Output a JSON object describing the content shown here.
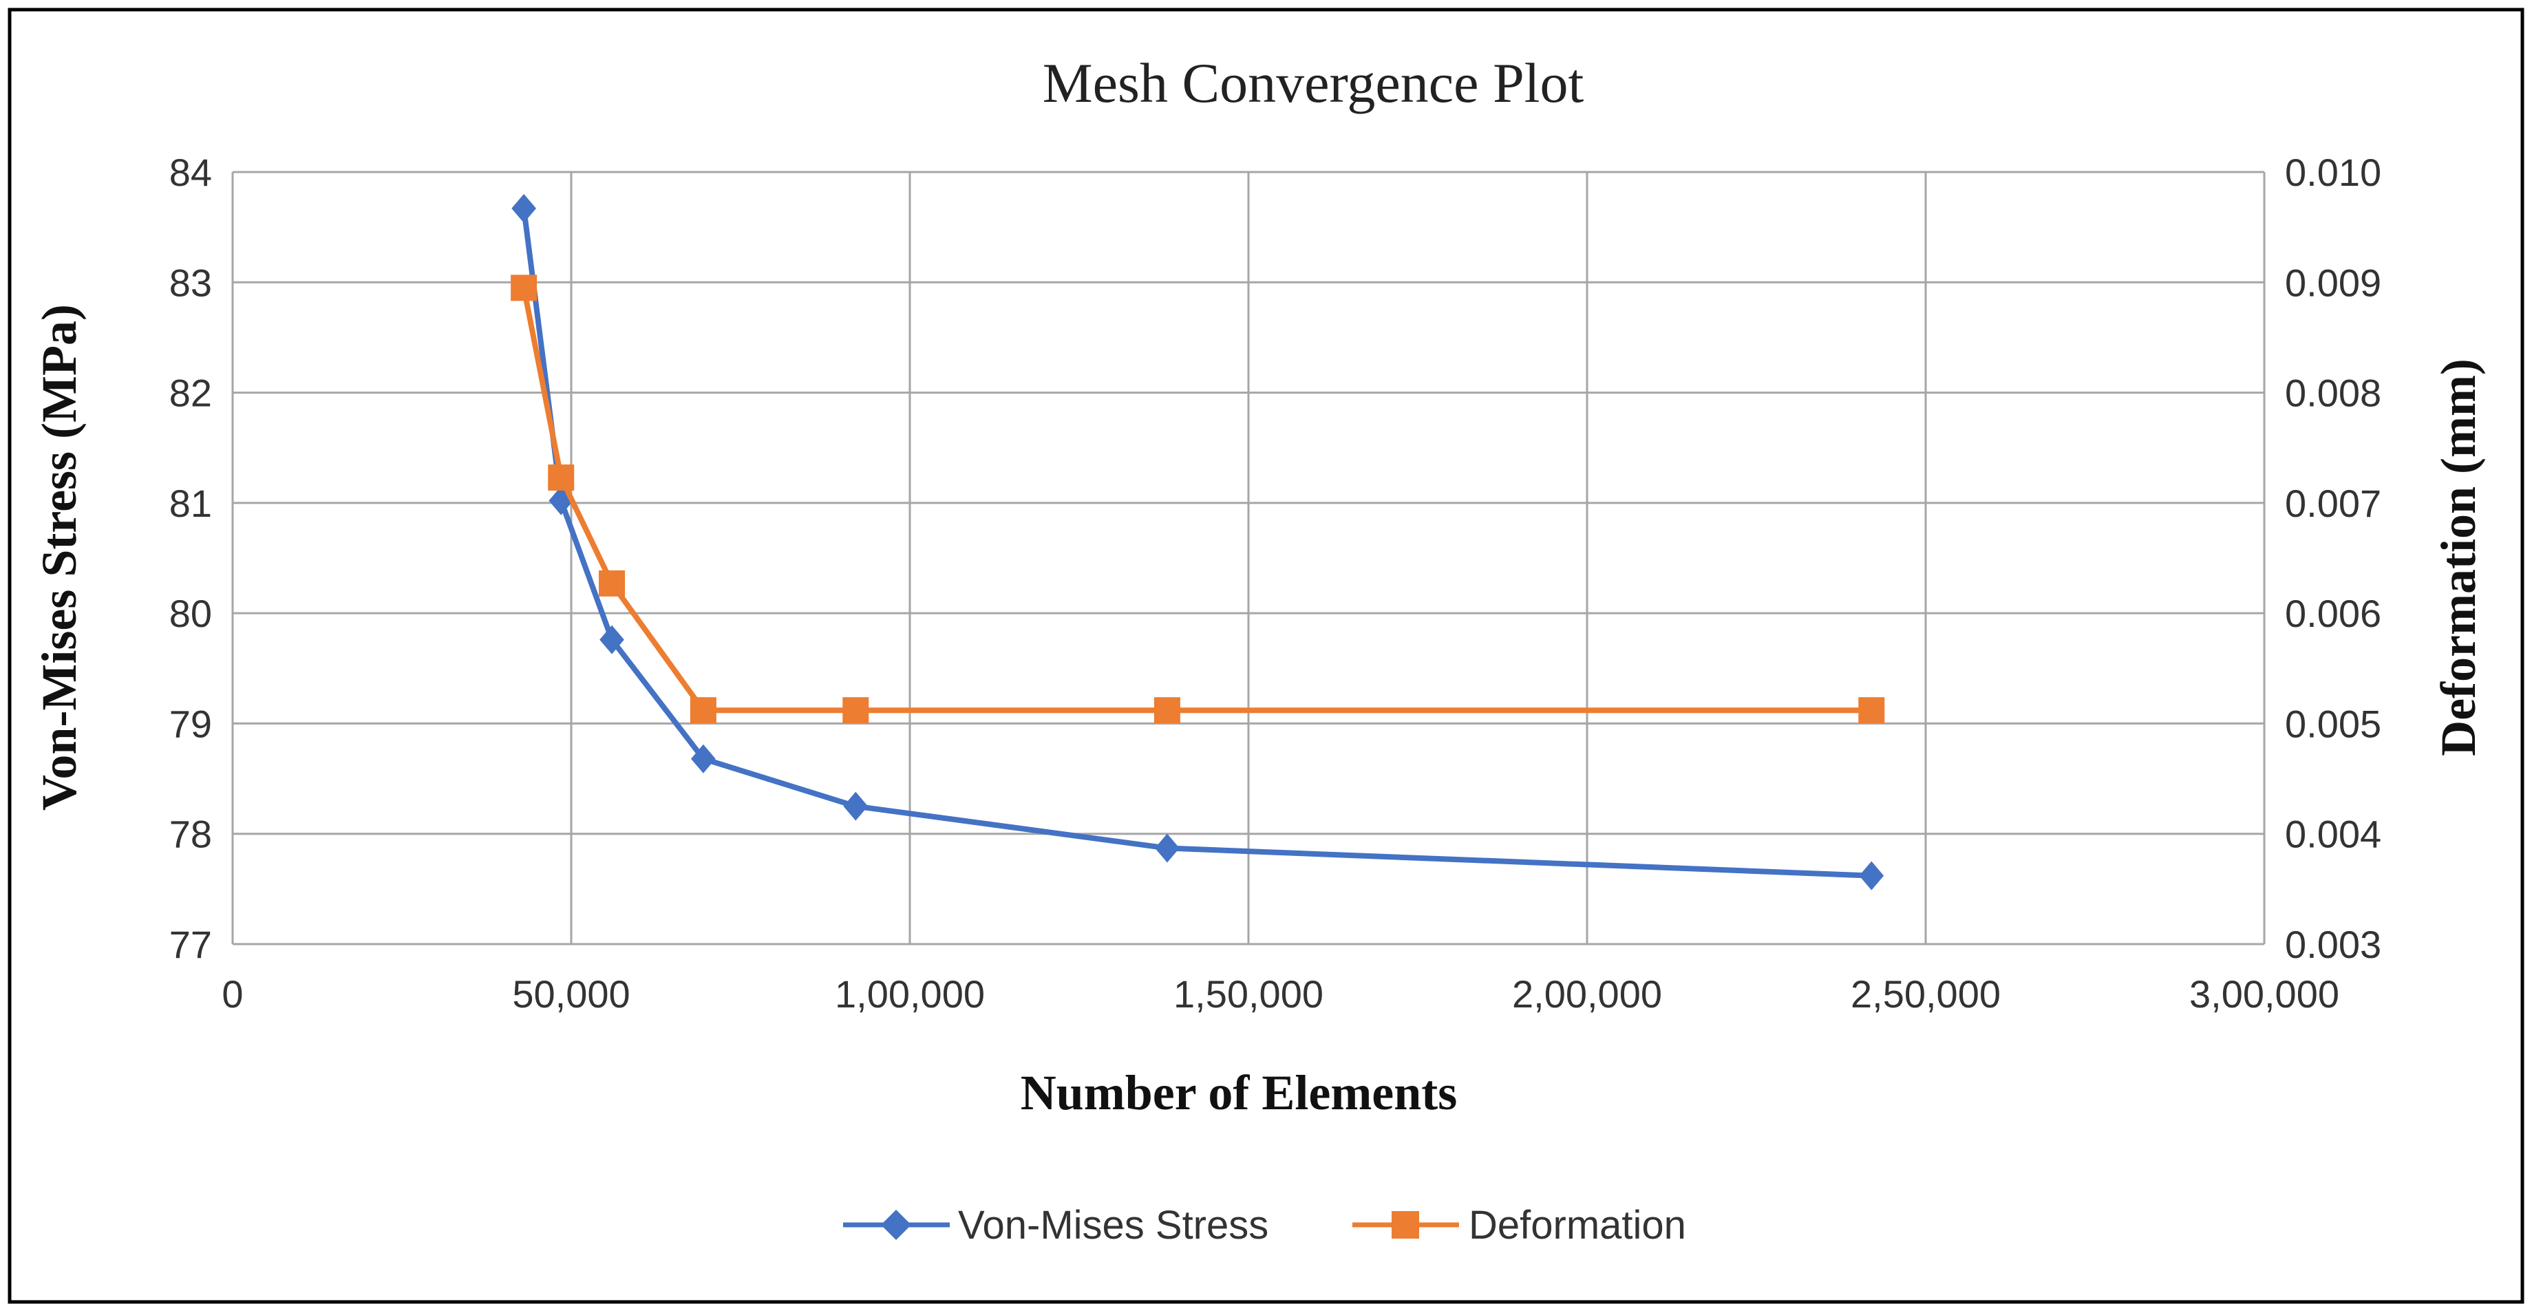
{
  "chart_data": {
    "type": "line",
    "title": "Mesh Convergence Plot",
    "xlabel": "Number of Elements",
    "ylabel": "Von-Mises Stress (MPa)",
    "y2label": "Deformation (mm)",
    "xlim": [
      0,
      300000
    ],
    "ylim": [
      77,
      84
    ],
    "y2lim": [
      0.003,
      0.01
    ],
    "x_ticks": [
      0,
      50000,
      100000,
      150000,
      200000,
      250000,
      300000
    ],
    "x_tick_labels": [
      "0",
      "50,000",
      "1,00,000",
      "1,50,000",
      "2,00,000",
      "2,50,000",
      "3,00,000"
    ],
    "y_ticks": [
      77,
      78,
      79,
      80,
      81,
      82,
      83,
      84
    ],
    "y_tick_labels": [
      "77",
      "78",
      "79",
      "80",
      "81",
      "82",
      "83",
      "84"
    ],
    "y2_ticks": [
      0.003,
      0.004,
      0.005,
      0.006,
      0.007,
      0.008,
      0.009,
      0.01
    ],
    "y2_tick_labels": [
      "0.003",
      "0.004",
      "0.005",
      "0.006",
      "0.007",
      "0.008",
      "0.009",
      "0.010"
    ],
    "grid": true,
    "legend_position": "bottom",
    "series": [
      {
        "name": "Von-Mises Stress",
        "axis": "left",
        "color": "#4472C4",
        "marker": "diamond",
        "x": [
          43000,
          48500,
          56000,
          69500,
          92000,
          138000,
          242000
        ],
        "values": [
          83.67,
          81.02,
          79.76,
          78.68,
          78.25,
          77.87,
          77.62
        ]
      },
      {
        "name": "Deformation",
        "axis": "right",
        "color": "#ED7D31",
        "marker": "square",
        "x": [
          43000,
          48500,
          56000,
          69500,
          92000,
          138000,
          242000
        ],
        "values": [
          0.00895,
          0.00723,
          0.00627,
          0.00512,
          0.00512,
          0.00512,
          0.00512
        ]
      }
    ]
  }
}
